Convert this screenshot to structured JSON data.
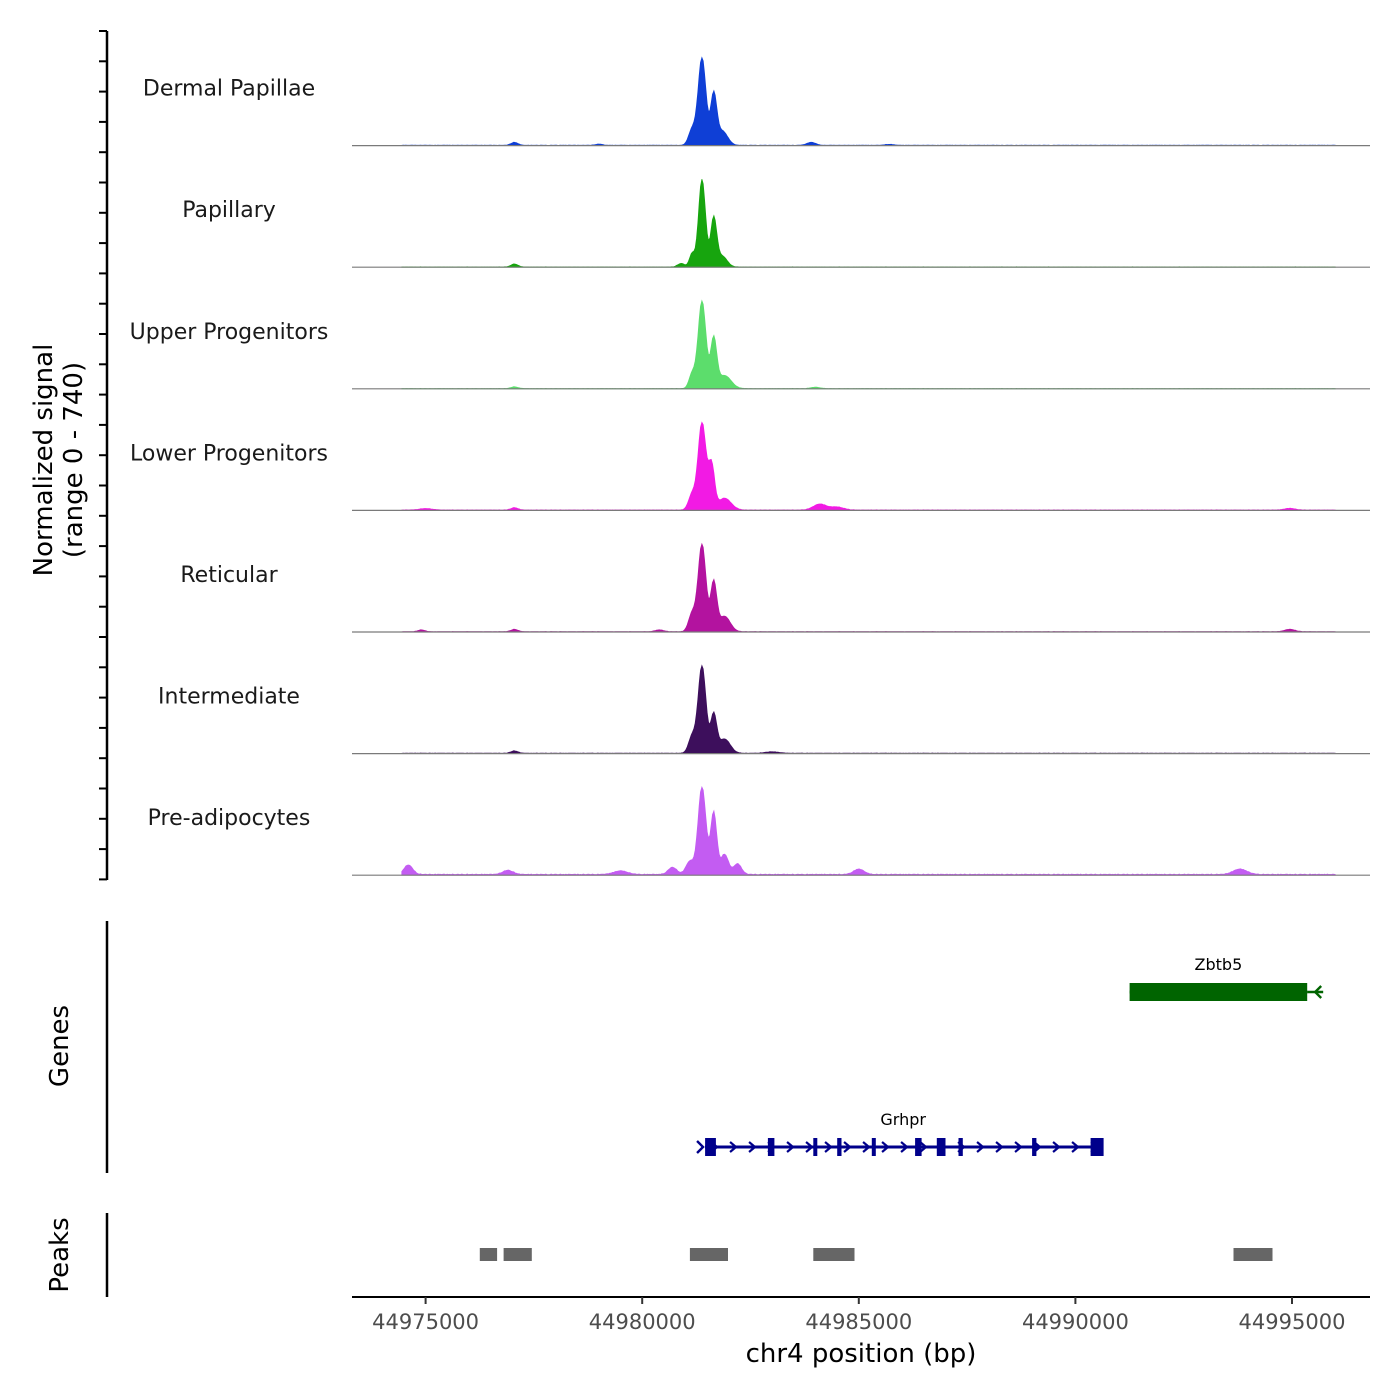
{
  "chart_data": {
    "type": "area",
    "title": "",
    "chromosome": "chr4",
    "xlabel": "chr4 position (bp)",
    "ylabel": "Normalized signal",
    "ylabel_range": "(range 0 - 740)",
    "xlim": [
      44973300,
      44996800
    ],
    "ylim": [
      0,
      740
    ],
    "x_ticks": [
      {
        "value": 44975000,
        "label": "44975000"
      },
      {
        "value": 44980000,
        "label": "44980000"
      },
      {
        "value": 44985000,
        "label": "44985000"
      },
      {
        "value": 44990000,
        "label": "44990000"
      },
      {
        "value": 44995000,
        "label": "44995000"
      }
    ],
    "series": [
      {
        "name": "Dermal Papillae",
        "color": "#0f3fd6",
        "peaks": [
          [
            44981380,
            740,
            90
          ],
          [
            44981650,
            420,
            70
          ],
          [
            44981150,
            130,
            80
          ],
          [
            44981850,
            120,
            120
          ],
          [
            44977050,
            25,
            80
          ],
          [
            44983900,
            25,
            100
          ],
          [
            44979000,
            10,
            80
          ],
          [
            44985700,
            8,
            100
          ]
        ],
        "baseline": 4
      },
      {
        "name": "Papillary",
        "color": "#17a50e",
        "peaks": [
          [
            44981380,
            740,
            80
          ],
          [
            44981650,
            410,
            70
          ],
          [
            44981150,
            110,
            60
          ],
          [
            44981850,
            90,
            110
          ],
          [
            44977050,
            25,
            80
          ],
          [
            44980900,
            30,
            80
          ]
        ],
        "baseline": 3
      },
      {
        "name": "Upper Progenitors",
        "color": "#5cdd6c",
        "peaks": [
          [
            44981380,
            740,
            90
          ],
          [
            44981650,
            410,
            70
          ],
          [
            44981150,
            120,
            70
          ],
          [
            44981900,
            110,
            150
          ],
          [
            44977050,
            15,
            80
          ],
          [
            44984000,
            12,
            100
          ]
        ],
        "baseline": 3
      },
      {
        "name": "Lower Progenitors",
        "color": "#f21ae4",
        "peaks": [
          [
            44981380,
            740,
            90
          ],
          [
            44981600,
            370,
            70
          ],
          [
            44981150,
            130,
            80
          ],
          [
            44981900,
            100,
            150
          ],
          [
            44984100,
            50,
            150
          ],
          [
            44984500,
            25,
            150
          ],
          [
            44977050,
            20,
            80
          ],
          [
            44975000,
            12,
            150
          ],
          [
            44994950,
            14,
            120
          ]
        ],
        "baseline": 5
      },
      {
        "name": "Reticular",
        "color": "#b3139f",
        "peaks": [
          [
            44981380,
            740,
            90
          ],
          [
            44981650,
            410,
            70
          ],
          [
            44981150,
            150,
            80
          ],
          [
            44981900,
            130,
            130
          ],
          [
            44977050,
            20,
            80
          ],
          [
            44980400,
            15,
            100
          ],
          [
            44994950,
            20,
            120
          ],
          [
            44974900,
            15,
            80
          ]
        ],
        "baseline": 4
      },
      {
        "name": "Intermediate",
        "color": "#3d0f5c",
        "peaks": [
          [
            44981380,
            740,
            90
          ],
          [
            44981650,
            320,
            70
          ],
          [
            44981150,
            140,
            80
          ],
          [
            44981900,
            120,
            130
          ],
          [
            44977050,
            20,
            80
          ],
          [
            44983000,
            12,
            150
          ]
        ],
        "baseline": 5
      },
      {
        "name": "Pre-adipocytes",
        "color": "#c35cf2",
        "peaks": [
          [
            44981380,
            740,
            90
          ],
          [
            44981650,
            520,
            70
          ],
          [
            44981900,
            170,
            90
          ],
          [
            44981100,
            110,
            90
          ],
          [
            44982200,
            90,
            90
          ],
          [
            44980700,
            60,
            100
          ],
          [
            44974600,
            80,
            100
          ],
          [
            44976900,
            35,
            120
          ],
          [
            44985000,
            45,
            120
          ],
          [
            44993800,
            45,
            160
          ],
          [
            44979500,
            30,
            160
          ]
        ],
        "baseline": 10
      }
    ],
    "genes_track_label": "Genes",
    "genes": [
      {
        "name": "Zbtb5",
        "start": 44991250,
        "end": 44995350,
        "strand": "-",
        "color": "#006400",
        "exons": [
          [
            44991250,
            44995350
          ]
        ]
      },
      {
        "name": "Grhpr",
        "start": 44981450,
        "end": 44990600,
        "strand": "+",
        "color": "#00008b",
        "exons": [
          [
            44981450,
            44981700
          ],
          [
            44982900,
            44983050
          ],
          [
            44983950,
            44984000
          ],
          [
            44984500,
            44984600
          ],
          [
            44985300,
            44985350
          ],
          [
            44986300,
            44986450
          ],
          [
            44986800,
            44987000
          ],
          [
            44987300,
            44987400
          ],
          [
            44989000,
            44989100
          ],
          [
            44990350,
            44990650
          ]
        ]
      }
    ],
    "peaks_track_label": "Peaks",
    "peak_color": "#666666",
    "peak_regions": [
      [
        44976250,
        44976650
      ],
      [
        44976800,
        44977450
      ],
      [
        44981100,
        44981980
      ],
      [
        44983950,
        44984900
      ],
      [
        44993650,
        44994550
      ]
    ]
  }
}
